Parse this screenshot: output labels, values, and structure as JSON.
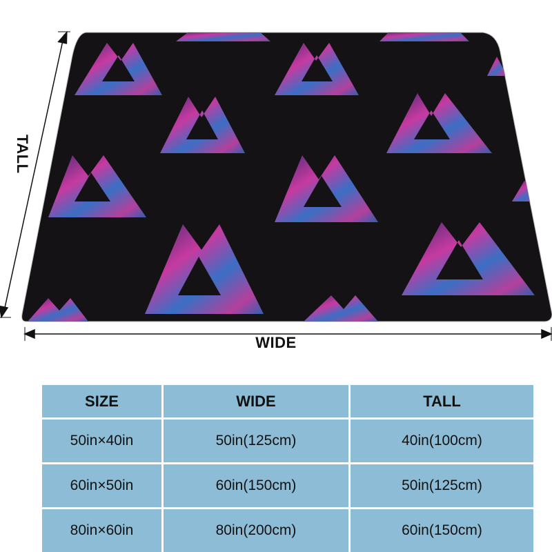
{
  "figure": {
    "label_tall": "TALL",
    "label_wide": "WIDE",
    "colors": {
      "blanket": "#141214",
      "pattern_magenta": "#c63aa0",
      "pattern_blue": "#3a6fc4"
    },
    "pattern_icon": "valknut-triangles-icon"
  },
  "table": {
    "headers": [
      "SIZE",
      "WIDE",
      "TALL"
    ],
    "rows": [
      [
        "50in×40in",
        "50in(125cm)",
        "40in(100cm)"
      ],
      [
        "60in×50in",
        "60in(150cm)",
        "50in(125cm)"
      ],
      [
        "80in×60in",
        "80in(200cm)",
        "60in(150cm)"
      ]
    ],
    "cell_color": "#8dbdd6"
  }
}
